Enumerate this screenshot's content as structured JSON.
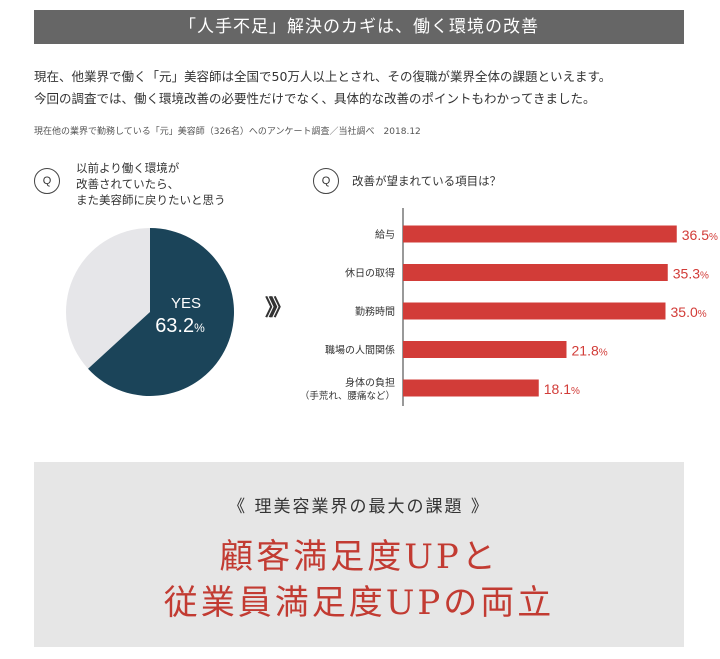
{
  "header": {
    "title": "「人手不足」解決のカギは、働く環境の改善"
  },
  "intro": {
    "line1": "現在、他業界で働く「元」美容師は全国で50万人以上とされ、その復職が業界全体の課題といえます。",
    "line2": "今回の調査では、働く環境改善の必要性だけでなく、具体的な改善のポイントもわかってきました。",
    "source": "現在他の業界で勤務している「元」美容師（326名）へのアンケート調査／当社調べ　2018.12"
  },
  "q_label": "Q",
  "arrow_glyph": "》》",
  "colors": {
    "pie_yes": "#1b4459",
    "pie_rest": "#e6e6e9",
    "bar": "#d23c38",
    "value_text": "#d23c38",
    "footer_text": "#c23b32"
  },
  "chart_data": [
    {
      "type": "pie",
      "question": [
        "以前より働く環境が",
        "改善されていたら、",
        "また美容師に戻りたいと思う"
      ],
      "slices": [
        {
          "name": "YES",
          "value": 63.2
        },
        {
          "name": "",
          "value": 36.8
        }
      ],
      "label_name": "YES",
      "label_value": "63.2",
      "label_unit": "%"
    },
    {
      "type": "bar",
      "orientation": "horizontal",
      "question": "改善が望まれている項目は？",
      "categories": [
        [
          "給与"
        ],
        [
          "休日の取得"
        ],
        [
          "勤務時間"
        ],
        [
          "職場の人間関係"
        ],
        [
          "身体の負担",
          "（手荒れ、腰痛など）"
        ]
      ],
      "values": [
        36.5,
        35.3,
        35.0,
        21.8,
        18.1
      ],
      "value_labels": [
        "36.5",
        "35.3",
        "35.0",
        "21.8",
        "18.1"
      ],
      "unit": "%",
      "xlim": [
        0,
        40
      ]
    }
  ],
  "footer": {
    "subtitle": "《 理美容業界の最大の課題 》",
    "line1": "顧客満足度UPと",
    "line2": "従業員満足度UPの両立"
  }
}
